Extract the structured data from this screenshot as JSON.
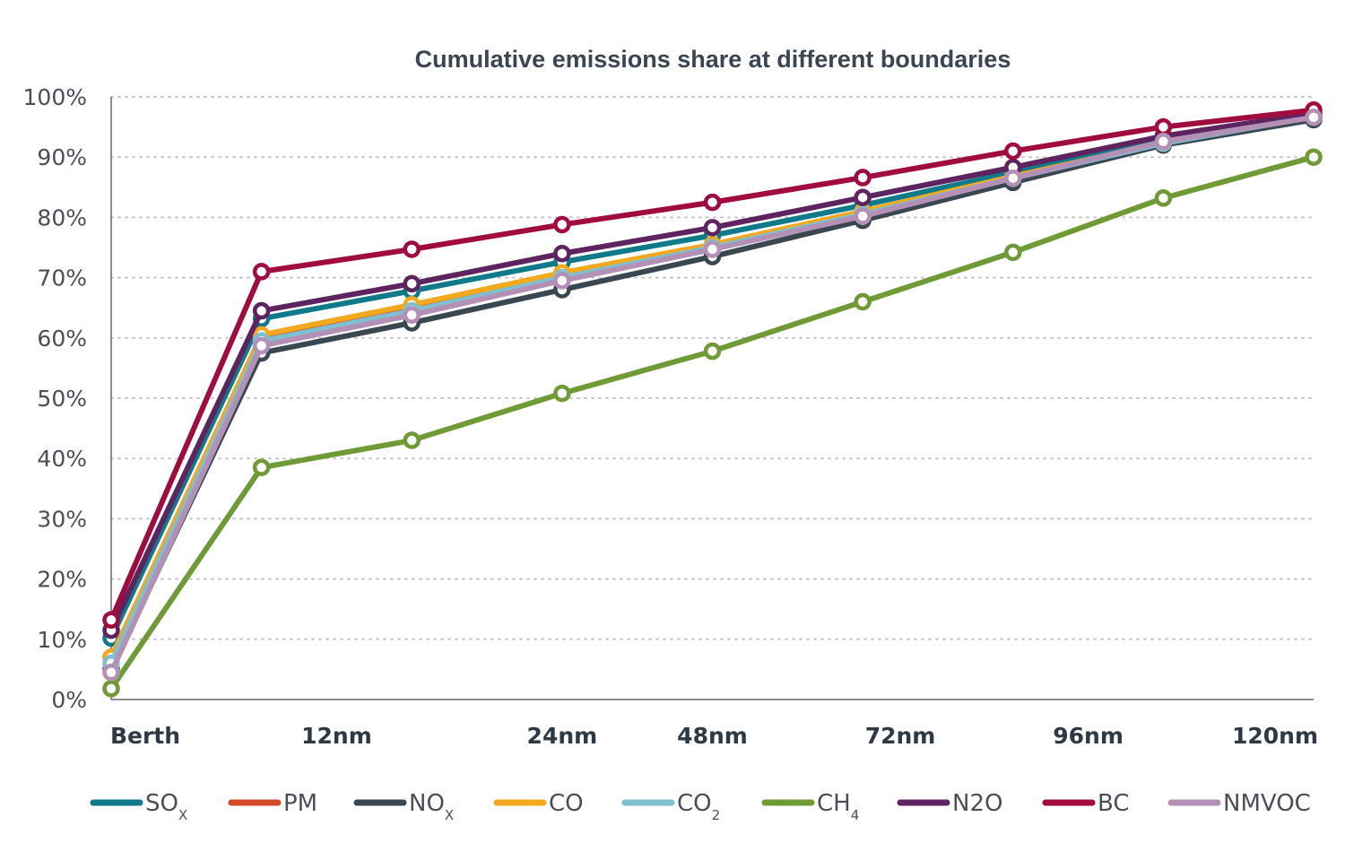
{
  "chart_data": {
    "type": "line",
    "title": "Cumulative emissions share at different boundaries",
    "xlabel": "",
    "ylabel": "",
    "ylim": [
      0,
      100
    ],
    "y_tick_labels": [
      "0%",
      "10%",
      "20%",
      "30%",
      "40%",
      "50%",
      "60%",
      "70%",
      "80%",
      "90%",
      "100%"
    ],
    "y_tick_values": [
      0,
      10,
      20,
      30,
      40,
      50,
      60,
      70,
      80,
      90,
      100
    ],
    "grid": "horizontal dotted",
    "x_point_count": 9,
    "x_tick_labels": [
      {
        "label": "Berth",
        "index": 0
      },
      {
        "label": "12nm",
        "index": 1.5
      },
      {
        "label": "24nm",
        "index": 3
      },
      {
        "label": "48nm",
        "index": 4
      },
      {
        "label": "72nm",
        "index": 5.25
      },
      {
        "label": "96nm",
        "index": 6.5
      },
      {
        "label": "120nm",
        "index": 8
      }
    ],
    "legend_position": "bottom",
    "series": [
      {
        "name": "SO",
        "sub": "X",
        "color": "#10798a",
        "values": [
          10.2,
          63.2,
          67.8,
          72.6,
          77.0,
          82.0,
          87.5,
          92.8,
          97.0
        ]
      },
      {
        "name": "PM",
        "sub": "",
        "color": "#d2492a",
        "values": [
          7.0,
          60.0,
          65.0,
          70.5,
          75.3,
          80.8,
          86.6,
          92.3,
          96.6
        ]
      },
      {
        "name": "NO",
        "sub": "X",
        "color": "#3a4650",
        "values": [
          5.0,
          57.5,
          62.5,
          68.0,
          73.5,
          79.5,
          85.8,
          92.0,
          96.2
        ]
      },
      {
        "name": "CO",
        "sub": "",
        "color": "#f2a91d",
        "values": [
          7.0,
          60.5,
          65.5,
          70.8,
          75.5,
          81.0,
          86.8,
          92.4,
          96.8
        ]
      },
      {
        "name": "CO",
        "sub": "2",
        "color": "#7fbfcf",
        "values": [
          6.0,
          59.5,
          64.5,
          70.0,
          75.0,
          80.5,
          86.5,
          92.3,
          96.7
        ]
      },
      {
        "name": "CH",
        "sub": "4",
        "color": "#6f9a36",
        "values": [
          1.8,
          38.5,
          43.0,
          50.8,
          57.8,
          66.0,
          74.2,
          83.2,
          90.0
        ]
      },
      {
        "name": "N2O",
        "sub": "",
        "color": "#5d2460",
        "values": [
          11.5,
          64.5,
          69.0,
          74.0,
          78.3,
          83.3,
          88.3,
          93.5,
          97.3
        ]
      },
      {
        "name": "BC",
        "sub": "",
        "color": "#a10c3e",
        "values": [
          13.2,
          71.0,
          74.7,
          78.8,
          82.5,
          86.6,
          91.0,
          95.0,
          97.8
        ]
      },
      {
        "name": "NMVOC",
        "sub": "",
        "color": "#b390b6",
        "values": [
          4.5,
          58.7,
          63.8,
          69.5,
          74.7,
          80.2,
          86.5,
          92.6,
          96.6
        ]
      }
    ]
  }
}
